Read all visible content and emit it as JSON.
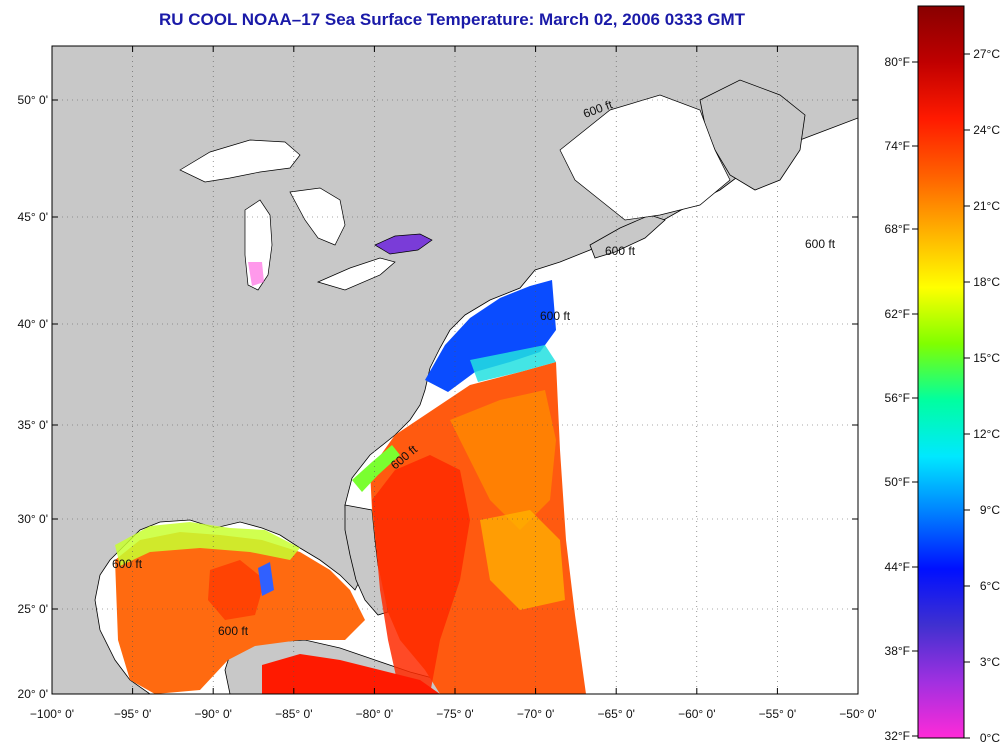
{
  "title": "RU COOL  NOAA–17  Sea Surface Temperature:  March 02, 2006 0333 GMT",
  "map": {
    "lon_labels": [
      "−100° 0'",
      "−95° 0'",
      "−90° 0'",
      "−85° 0'",
      "−80° 0'",
      "−75° 0'",
      "−70° 0'",
      "−65° 0'",
      "−60° 0'",
      "−55° 0'",
      "−50° 0'"
    ],
    "lat_labels": [
      "20° 0'",
      "25° 0'",
      "30° 0'",
      "35° 0'",
      "40° 0'",
      "45° 0'",
      "50° 0'"
    ],
    "contour_label": "600 ft",
    "colors": {
      "land": "#c8c8c8",
      "no_data": "#ffffff",
      "coastline": "#000000",
      "grid": "#555555"
    }
  },
  "colorbar": {
    "fahrenheit_labels": [
      "80°F",
      "74°F",
      "68°F",
      "62°F",
      "56°F",
      "50°F",
      "44°F",
      "38°F",
      "32°F"
    ],
    "celsius_labels": [
      "27°C",
      "24°C",
      "21°C",
      "18°C",
      "15°C",
      "12°C",
      "9°C",
      "6°C",
      "3°C",
      "0°C"
    ],
    "gradient_colors": [
      "#ff2ad8",
      "#a030e0",
      "#4030d0",
      "#0010ff",
      "#0080ff",
      "#00e8ff",
      "#00ffa0",
      "#80ff00",
      "#ffff00",
      "#ffb000",
      "#ff6000",
      "#ff1a00",
      "#c00000",
      "#880000"
    ]
  }
}
